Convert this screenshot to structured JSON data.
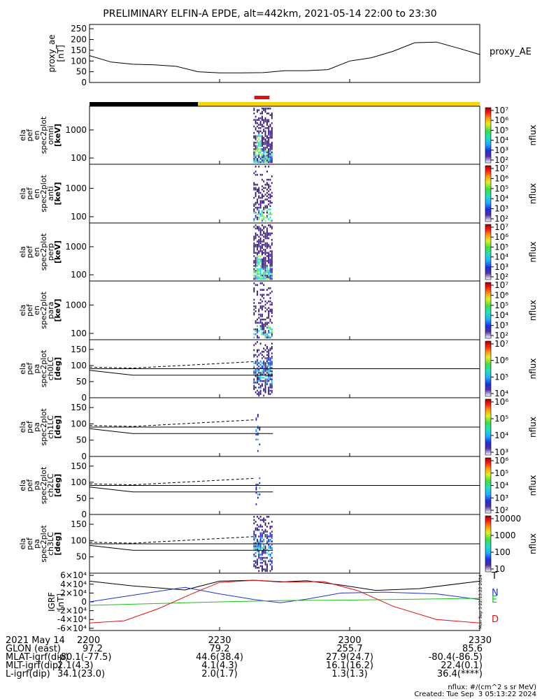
{
  "title": "PRELIMINARY ELFIN-A EPDE, alt=442km, 2021-05-14 22:00 to 23:30",
  "colors": {
    "ae_line": "#000000",
    "bar_black": "#000000",
    "bar_yellow": "#f6d40a",
    "bar_red": "#e01010",
    "igrf_T": "#000000",
    "igrf_N": "#1f33d6",
    "igrf_E": "#1fbf1f",
    "igrf_D": "#e01010"
  },
  "chart_data": [
    {
      "type": "line",
      "name": "proxy_ae",
      "ylabel": "proxy_ae\n[nT]",
      "legend": "proxy_AE",
      "ylim": [
        0,
        270
      ],
      "yticks": [
        "0",
        "50",
        "100",
        "150",
        "200",
        "250"
      ],
      "x_minutes": [
        0,
        5,
        10,
        15,
        20,
        25,
        30,
        35,
        40,
        45,
        50,
        55,
        60,
        65,
        70,
        75,
        80,
        85,
        90
      ],
      "values": [
        125,
        95,
        85,
        82,
        75,
        50,
        45,
        45,
        46,
        55,
        55,
        60,
        100,
        115,
        145,
        185,
        188,
        160,
        130
      ]
    },
    {
      "type": "timebar",
      "segments": [
        {
          "start": 0,
          "end": 25,
          "color": "#000000"
        },
        {
          "start": 25,
          "end": 90,
          "color": "#f6d40a"
        }
      ],
      "marker": {
        "start": 38,
        "end": 41.5,
        "color": "#e01010"
      }
    },
    {
      "type": "heatmap",
      "ylabel": [
        "ela",
        "pef",
        "en",
        "spec2plot",
        "omni",
        "[keV]"
      ],
      "yscale": "log",
      "ylim": [
        60,
        7000
      ],
      "yticks": [
        "100",
        "1000"
      ],
      "zlabel": "nflux",
      "zticks": [
        "10²",
        "10³",
        "10⁴",
        "10⁵",
        "10⁶",
        "10⁷"
      ],
      "active_minutes": [
        37.8,
        42.3
      ]
    },
    {
      "type": "heatmap",
      "ylabel": [
        "ela",
        "pef",
        "en",
        "spec2plot",
        "anti",
        "[keV]"
      ],
      "yscale": "log",
      "ylim": [
        60,
        7000
      ],
      "yticks": [
        "100",
        "1000"
      ],
      "zlabel": "nflux",
      "zticks": [
        "10²",
        "10³",
        "10⁴",
        "10⁵",
        "10⁶",
        "10⁷"
      ],
      "active_minutes": [
        37.8,
        42.3
      ]
    },
    {
      "type": "heatmap",
      "ylabel": [
        "ela",
        "pef",
        "en",
        "spec2plot",
        "perp",
        "[keV]"
      ],
      "yscale": "log",
      "ylim": [
        60,
        7000
      ],
      "yticks": [
        "100",
        "1000"
      ],
      "zlabel": "nflux",
      "zticks": [
        "10²",
        "10³",
        "10⁴",
        "10⁵",
        "10⁶",
        "10⁷"
      ],
      "active_minutes": [
        37.8,
        42.3
      ]
    },
    {
      "type": "heatmap",
      "ylabel": [
        "ela",
        "pef",
        "en",
        "spec2plot",
        "para",
        "[keV]"
      ],
      "yscale": "log",
      "ylim": [
        60,
        7000
      ],
      "yticks": [
        "100",
        "1000"
      ],
      "zlabel": "nflux",
      "zticks": [
        "10²",
        "10³",
        "10⁴",
        "10⁵",
        "10⁶",
        "10⁷"
      ],
      "active_minutes": [
        37.8,
        42.3
      ]
    },
    {
      "type": "heatmap",
      "ylabel": [
        "ela",
        "pef",
        "pa",
        "spec2plot",
        "ch0LC",
        "[deg]"
      ],
      "ylim": [
        0,
        180
      ],
      "yticks": [
        "0",
        "50",
        "100",
        "150"
      ],
      "zlabel": "nflux",
      "zticks": [
        "10⁴",
        "10⁵",
        "10⁶",
        "10⁷"
      ],
      "hline": 90,
      "lc_solid": [
        {
          "t": 0,
          "v": 85
        },
        {
          "t": 10,
          "v": 70
        },
        {
          "t": 42.3,
          "v": 70
        }
      ],
      "lc_dashed": [
        {
          "t": 0,
          "v": 95
        },
        {
          "t": 10,
          "v": 92
        },
        {
          "t": 37.8,
          "v": 112
        }
      ],
      "active_minutes": [
        37.8,
        42.3
      ]
    },
    {
      "type": "heatmap",
      "ylabel": [
        "ela",
        "pef",
        "pa",
        "spec2plot",
        "ch1LC",
        "[deg]"
      ],
      "ylim": [
        0,
        180
      ],
      "yticks": [
        "0",
        "50",
        "100",
        "150"
      ],
      "zlabel": "nflux",
      "zticks": [
        "10³",
        "10⁴",
        "10⁵",
        "10⁶"
      ],
      "hline": 90,
      "lc_solid": [
        {
          "t": 0,
          "v": 85
        },
        {
          "t": 10,
          "v": 70
        },
        {
          "t": 42.3,
          "v": 70
        }
      ],
      "lc_dashed": [
        {
          "t": 0,
          "v": 95
        },
        {
          "t": 10,
          "v": 92
        },
        {
          "t": 37.8,
          "v": 112
        }
      ],
      "active_minutes": [
        38.3,
        39.5
      ]
    },
    {
      "type": "heatmap",
      "ylabel": [
        "ela",
        "pef",
        "pa",
        "spec2plot",
        "ch2LC",
        "[deg]"
      ],
      "ylim": [
        0,
        180
      ],
      "yticks": [
        "0",
        "50",
        "100",
        "150"
      ],
      "zlabel": "nflux",
      "zticks": [
        "10²",
        "10³",
        "10⁴",
        "10⁵",
        "10⁶"
      ],
      "hline": 90,
      "lc_solid": [
        {
          "t": 0,
          "v": 85
        },
        {
          "t": 10,
          "v": 70
        },
        {
          "t": 42.3,
          "v": 70
        }
      ],
      "lc_dashed": [
        {
          "t": 0,
          "v": 95
        },
        {
          "t": 10,
          "v": 92
        },
        {
          "t": 37.8,
          "v": 112
        }
      ],
      "active_minutes": [
        38.3,
        39.5
      ]
    },
    {
      "type": "heatmap",
      "ylabel": [
        "ela",
        "pef",
        "pa",
        "spec2plot",
        "ch3LC",
        "[deg]"
      ],
      "ylim": [
        0,
        180
      ],
      "yticks": [
        "50",
        "100",
        "150"
      ],
      "zlabel": "nflux",
      "zticks": [
        "10",
        "100",
        "1000",
        "10000"
      ],
      "hline": 90,
      "lc_solid": [
        {
          "t": 0,
          "v": 85
        },
        {
          "t": 10,
          "v": 70
        },
        {
          "t": 42.3,
          "v": 70
        }
      ],
      "lc_dashed": [
        {
          "t": 0,
          "v": 95
        },
        {
          "t": 10,
          "v": 92
        },
        {
          "t": 37.8,
          "v": 112
        }
      ],
      "active_minutes": [
        37.8,
        42.3
      ]
    },
    {
      "type": "line",
      "name": "IGRF",
      "ylabel": "IGRF\n[nT]",
      "ylim": [
        -65000,
        65000
      ],
      "yticks": [
        "-6×10⁴",
        "-4×10⁴",
        "-2×10⁴",
        "0",
        "2×10⁴",
        "4×10⁴",
        "6×10⁴"
      ],
      "ytick_values": [
        -60000,
        -40000,
        -20000,
        0,
        20000,
        40000,
        60000
      ],
      "series": [
        {
          "name": "T",
          "color": "#000000",
          "points": [
            [
              0,
              47000
            ],
            [
              10,
              36000
            ],
            [
              22,
              27000
            ],
            [
              30,
              47000
            ],
            [
              38,
              49000
            ],
            [
              44,
              45000
            ],
            [
              50,
              48000
            ],
            [
              58,
              38000
            ],
            [
              66,
              26000
            ],
            [
              76,
              30000
            ],
            [
              90,
              47000
            ]
          ]
        },
        {
          "name": "N",
          "color": "#1f33d6",
          "points": [
            [
              0,
              0
            ],
            [
              10,
              15000
            ],
            [
              22,
              33000
            ],
            [
              30,
              18000
            ],
            [
              38,
              5000
            ],
            [
              44,
              -2000
            ],
            [
              50,
              6000
            ],
            [
              58,
              20000
            ],
            [
              68,
              22000
            ],
            [
              80,
              18000
            ],
            [
              90,
              5000
            ]
          ]
        },
        {
          "name": "E",
          "color": "#1fbf1f",
          "points": [
            [
              0,
              -8000
            ],
            [
              15,
              -4000
            ],
            [
              30,
              0
            ],
            [
              45,
              3000
            ],
            [
              60,
              4000
            ],
            [
              75,
              6000
            ],
            [
              90,
              8000
            ]
          ]
        },
        {
          "name": "D",
          "color": "#e01010",
          "points": [
            [
              0,
              -48000
            ],
            [
              8,
              -43000
            ],
            [
              16,
              -15000
            ],
            [
              24,
              20000
            ],
            [
              30,
              44000
            ],
            [
              38,
              49000
            ],
            [
              46,
              45000
            ],
            [
              54,
              46000
            ],
            [
              62,
              25000
            ],
            [
              70,
              -10000
            ],
            [
              80,
              -40000
            ],
            [
              90,
              -48000
            ]
          ]
        }
      ]
    }
  ],
  "xaxis": {
    "tick_labels": [
      "2200",
      "2230",
      "2300",
      "2330"
    ],
    "tick_minutes": [
      0,
      30,
      60,
      90
    ]
  },
  "footer": {
    "row_labels": [
      "2021 May 14",
      "GLON (east)",
      "MLAT-igrf(dip)",
      "MLT-igrf(dip)",
      "L-igrf(dip)"
    ],
    "columns": [
      [
        "2200",
        "97.2",
        "-80.1(-77.5)",
        "2.1(4.3)",
        "34.1(23.0)"
      ],
      [
        "2230",
        "79.2",
        "44.6(38.4)",
        "4.1(4.3)",
        "2.0(1.7)"
      ],
      [
        "2300",
        "255.7",
        "27.9(24.7)",
        "16.1(16.2)",
        "1.3(1.3)"
      ],
      [
        "2330",
        "85.6",
        "-80.4(-86.5)",
        "22.4(0.1)",
        "36.4(****)"
      ]
    ],
    "units_note": "nflux: #/(cm^2 s sr MeV)",
    "created": "Created: Tue Sep  3 05:13:22 2024",
    "rotated_stamp": "Mon Sep  3 22:13:22 2024"
  }
}
